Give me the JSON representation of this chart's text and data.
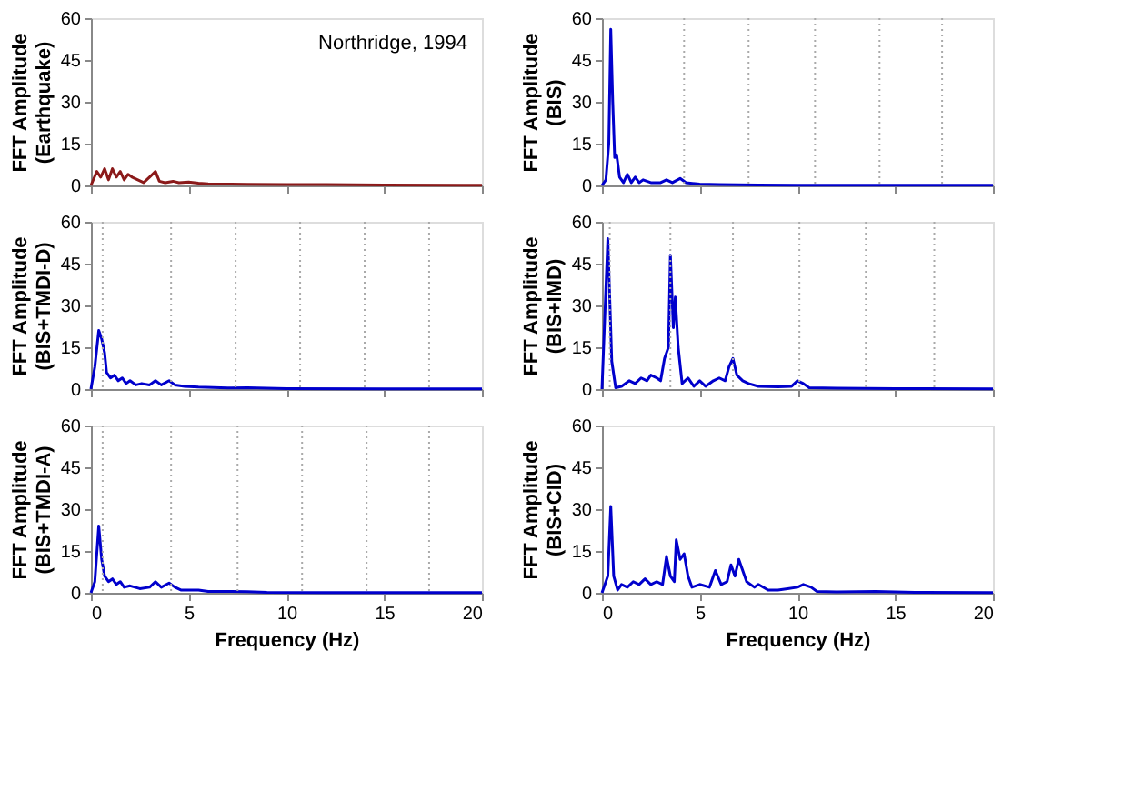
{
  "chart_data": [
    {
      "type": "line",
      "ylabel": "FFT Amplitude\n(Earthquake)",
      "xlim": [
        0,
        20
      ],
      "ylim": [
        0,
        60
      ],
      "xticks": [
        0,
        5,
        10,
        15,
        20
      ],
      "yticks": [
        0,
        15,
        30,
        45,
        60
      ],
      "tick_labels": "y",
      "grid": false,
      "line_style": "solid",
      "marker": "none",
      "annotations": [
        "Northridge, 1994"
      ],
      "series": [
        {
          "color": "#8b1a1a",
          "x": [
            0,
            0.3,
            0.5,
            0.7,
            0.9,
            1.1,
            1.3,
            1.5,
            1.7,
            1.9,
            2.1,
            2.4,
            2.7,
            3.0,
            3.3,
            3.5,
            3.8,
            4.2,
            4.5,
            5,
            5.5,
            6,
            7,
            8,
            10,
            12,
            15,
            20
          ],
          "values": [
            0,
            5,
            3,
            6,
            2,
            6,
            3,
            5,
            2,
            4,
            3,
            2,
            1,
            3,
            5,
            1.5,
            1,
            1.5,
            1,
            1.2,
            0.8,
            0.6,
            0.5,
            0.4,
            0.3,
            0.3,
            0.2,
            0.1
          ]
        }
      ]
    },
    {
      "type": "line",
      "ylabel": "FFT Amplitude\n(BIS)",
      "xlim": [
        0,
        20
      ],
      "ylim": [
        0,
        60
      ],
      "xticks": [
        0,
        5,
        10,
        15,
        20
      ],
      "yticks": [
        0,
        15,
        30,
        45,
        60
      ],
      "tick_labels": "y",
      "grid": false,
      "line_style": "solid",
      "marker": "none",
      "ref_lines": [
        {
          "axis": "x",
          "value": 4.2,
          "color": "#aaaaaa",
          "line_style": "dotted"
        },
        {
          "axis": "x",
          "value": 7.5,
          "color": "#aaaaaa",
          "line_style": "dotted"
        },
        {
          "axis": "x",
          "value": 10.9,
          "color": "#aaaaaa",
          "line_style": "dotted"
        },
        {
          "axis": "x",
          "value": 14.2,
          "color": "#aaaaaa",
          "line_style": "dotted"
        },
        {
          "axis": "x",
          "value": 17.4,
          "color": "#aaaaaa",
          "line_style": "dotted"
        }
      ],
      "series": [
        {
          "color": "#0000cc",
          "x": [
            0,
            0.2,
            0.35,
            0.45,
            0.55,
            0.65,
            0.75,
            0.9,
            1.1,
            1.3,
            1.5,
            1.7,
            1.9,
            2.1,
            2.5,
            3,
            3.3,
            3.6,
            4.0,
            4.3,
            5,
            6,
            8,
            10,
            20
          ],
          "values": [
            0,
            2,
            15,
            56,
            30,
            10,
            11,
            3,
            1,
            4,
            1,
            3,
            1,
            2,
            1,
            1,
            2,
            1,
            2.5,
            1,
            0.5,
            0.3,
            0.2,
            0.1,
            0.05
          ]
        }
      ]
    },
    {
      "type": "line",
      "ylabel": "FFT Amplitude\n(BIS+TMDI-D)",
      "xlim": [
        0,
        20
      ],
      "ylim": [
        0,
        60
      ],
      "xticks": [
        0,
        5,
        10,
        15,
        20
      ],
      "yticks": [
        0,
        15,
        30,
        45,
        60
      ],
      "tick_labels": "y",
      "grid": false,
      "line_style": "solid",
      "marker": "none",
      "ref_lines": [
        {
          "axis": "x",
          "value": 0.6,
          "color": "#aaaaaa",
          "line_style": "dotted"
        },
        {
          "axis": "x",
          "value": 4.1,
          "color": "#aaaaaa",
          "line_style": "dotted"
        },
        {
          "axis": "x",
          "value": 7.4,
          "color": "#aaaaaa",
          "line_style": "dotted"
        },
        {
          "axis": "x",
          "value": 10.7,
          "color": "#aaaaaa",
          "line_style": "dotted"
        },
        {
          "axis": "x",
          "value": 14.0,
          "color": "#aaaaaa",
          "line_style": "dotted"
        },
        {
          "axis": "x",
          "value": 17.3,
          "color": "#aaaaaa",
          "line_style": "dotted"
        }
      ],
      "series": [
        {
          "color": "#0000cc",
          "x": [
            0,
            0.2,
            0.4,
            0.55,
            0.7,
            0.8,
            1,
            1.2,
            1.4,
            1.6,
            1.8,
            2,
            2.3,
            2.6,
            3,
            3.3,
            3.6,
            4,
            4.3,
            4.8,
            5.5,
            7,
            8,
            10,
            15,
            20
          ],
          "values": [
            0,
            8,
            21,
            18,
            13,
            6,
            4,
            5,
            3,
            4,
            2,
            3,
            1.5,
            2,
            1.5,
            3,
            1.5,
            3,
            1.5,
            1,
            0.7,
            0.4,
            0.5,
            0.2,
            0.1,
            0.05
          ]
        }
      ]
    },
    {
      "type": "line",
      "ylabel": "FFT Amplitude\n(BIS+IMD)",
      "xlim": [
        0,
        20
      ],
      "ylim": [
        0,
        60
      ],
      "xticks": [
        0,
        5,
        10,
        15,
        20
      ],
      "yticks": [
        0,
        15,
        30,
        45,
        60
      ],
      "tick_labels": "y",
      "grid": false,
      "line_style": "solid",
      "marker": "none",
      "ref_lines": [
        {
          "axis": "x",
          "value": 0.4,
          "color": "#aaaaaa",
          "line_style": "dotted"
        },
        {
          "axis": "x",
          "value": 3.5,
          "color": "#aaaaaa",
          "line_style": "dotted"
        },
        {
          "axis": "x",
          "value": 6.7,
          "color": "#aaaaaa",
          "line_style": "dotted"
        },
        {
          "axis": "x",
          "value": 10.1,
          "color": "#aaaaaa",
          "line_style": "dotted"
        },
        {
          "axis": "x",
          "value": 13.5,
          "color": "#aaaaaa",
          "line_style": "dotted"
        },
        {
          "axis": "x",
          "value": 17.0,
          "color": "#aaaaaa",
          "line_style": "dotted"
        }
      ],
      "series": [
        {
          "color": "#0000cc",
          "x": [
            0,
            0.3,
            0.5,
            0.7,
            1,
            1.4,
            1.7,
            2,
            2.3,
            2.5,
            2.8,
            3,
            3.2,
            3.4,
            3.5,
            3.65,
            3.75,
            3.9,
            4.1,
            4.4,
            4.7,
            5,
            5.3,
            5.7,
            6,
            6.3,
            6.5,
            6.7,
            6.9,
            7.2,
            7.5,
            8,
            9,
            9.7,
            10,
            10.3,
            10.6,
            12,
            15,
            20
          ],
          "values": [
            0,
            54,
            10,
            0.5,
            1,
            3,
            2,
            4,
            3,
            5,
            4,
            3,
            11,
            15,
            48,
            22,
            33,
            15,
            2,
            4,
            1,
            3,
            1,
            3,
            4,
            3,
            8,
            11,
            5,
            3,
            2,
            1,
            0.8,
            1,
            3,
            2,
            0.5,
            0.3,
            0.2,
            0.1
          ]
        }
      ]
    },
    {
      "type": "line",
      "ylabel": "FFT Amplitude\n(BIS+TMDI-A)",
      "xlabel": "Frequency (Hz)",
      "xlim": [
        0,
        20
      ],
      "ylim": [
        0,
        60
      ],
      "xticks": [
        0,
        5,
        10,
        15,
        20
      ],
      "yticks": [
        0,
        15,
        30,
        45,
        60
      ],
      "grid": false,
      "line_style": "solid",
      "marker": "none",
      "ref_lines": [
        {
          "axis": "x",
          "value": 0.6,
          "color": "#aaaaaa",
          "line_style": "dotted"
        },
        {
          "axis": "x",
          "value": 4.1,
          "color": "#aaaaaa",
          "line_style": "dotted"
        },
        {
          "axis": "x",
          "value": 7.5,
          "color": "#aaaaaa",
          "line_style": "dotted"
        },
        {
          "axis": "x",
          "value": 10.8,
          "color": "#aaaaaa",
          "line_style": "dotted"
        },
        {
          "axis": "x",
          "value": 14.1,
          "color": "#aaaaaa",
          "line_style": "dotted"
        },
        {
          "axis": "x",
          "value": 17.3,
          "color": "#aaaaaa",
          "line_style": "dotted"
        }
      ],
      "series": [
        {
          "color": "#0000cc",
          "x": [
            0,
            0.2,
            0.4,
            0.55,
            0.7,
            0.9,
            1.1,
            1.3,
            1.5,
            1.7,
            2,
            2.5,
            3,
            3.3,
            3.6,
            4,
            4.3,
            4.6,
            5,
            5.5,
            6,
            7,
            8,
            9,
            12,
            20
          ],
          "values": [
            0,
            4,
            24,
            12,
            6,
            4,
            5,
            3,
            4,
            2,
            2.5,
            1.5,
            2,
            4,
            2,
            3.5,
            2,
            1,
            1,
            1,
            0.5,
            0.5,
            0.4,
            0.2,
            0.1,
            0.05
          ]
        }
      ]
    },
    {
      "type": "line",
      "ylabel": "FFT Amplitude\n(BIS+CID)",
      "xlabel": "Frequency (Hz)",
      "xlim": [
        0,
        20
      ],
      "ylim": [
        0,
        60
      ],
      "xticks": [
        0,
        5,
        10,
        15,
        20
      ],
      "yticks": [
        0,
        15,
        30,
        45,
        60
      ],
      "grid": false,
      "line_style": "solid",
      "marker": "none",
      "series": [
        {
          "color": "#0000cc",
          "x": [
            0,
            0.3,
            0.45,
            0.6,
            0.8,
            1,
            1.3,
            1.6,
            1.9,
            2.2,
            2.5,
            2.8,
            3.1,
            3.3,
            3.5,
            3.7,
            3.8,
            4,
            4.2,
            4.4,
            4.6,
            5,
            5.5,
            5.8,
            6.1,
            6.4,
            6.6,
            6.8,
            7,
            7.2,
            7.4,
            7.8,
            8,
            8.5,
            9,
            9.5,
            10,
            10.3,
            10.7,
            11,
            12,
            14,
            16,
            20
          ],
          "values": [
            0,
            6,
            31,
            6,
            1,
            3,
            2,
            4,
            3,
            5,
            3,
            4,
            3,
            13,
            6,
            4,
            19,
            12,
            14,
            6,
            2,
            3,
            2,
            8,
            3,
            4,
            10,
            6,
            12,
            8,
            4,
            2,
            3,
            1,
            1,
            1.5,
            2,
            3,
            2,
            0.5,
            0.3,
            0.5,
            0.2,
            0.1
          ]
        }
      ]
    }
  ]
}
